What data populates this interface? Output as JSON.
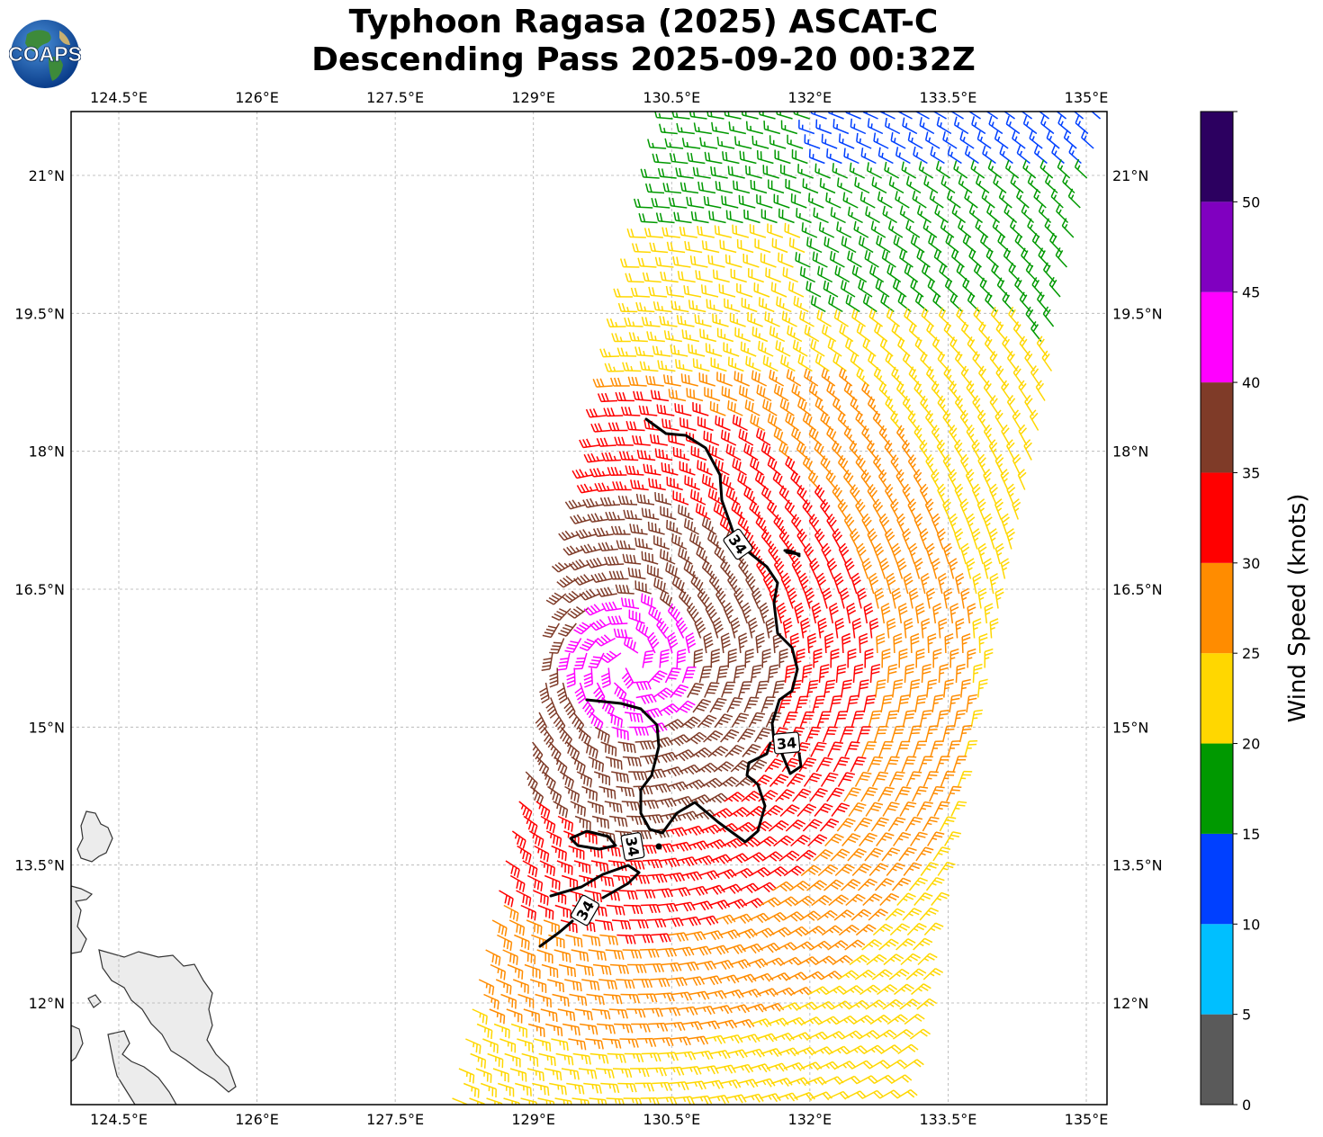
{
  "title": {
    "line1": "Typhoon Ragasa (2025) ASCAT-C",
    "line2": "Descending Pass 2025-09-20 00:32Z"
  },
  "logo": {
    "text": "COAPS"
  },
  "axes": {
    "lon_ticks": [
      "124.5°E",
      "126°E",
      "127.5°E",
      "129°E",
      "130.5°E",
      "132°E",
      "133.5°E",
      "135°E"
    ],
    "lat_ticks": [
      "21°N",
      "19.5°N",
      "18°N",
      "16.5°N",
      "15°N",
      "13.5°N",
      "12°N"
    ],
    "lon_values": [
      124.5,
      126,
      127.5,
      129,
      130.5,
      132,
      133.5,
      135
    ],
    "lat_values": [
      21,
      19.5,
      18,
      16.5,
      15,
      13.5,
      12
    ],
    "lon_range": [
      123.95,
      135.2
    ],
    "lat_range": [
      10.9,
      21.7
    ],
    "gridlines": true
  },
  "contour": {
    "label": "34",
    "unit_level_kt": 34
  },
  "colorbar": {
    "label": "Wind Speed (knots)",
    "ticks": [
      "0",
      "5",
      "10",
      "15",
      "20",
      "25",
      "30",
      "35",
      "40",
      "45",
      "50"
    ],
    "bins": [
      {
        "min": 0,
        "max": 5,
        "color": "#5a5a5a"
      },
      {
        "min": 5,
        "max": 10,
        "color": "#00bfff"
      },
      {
        "min": 10,
        "max": 15,
        "color": "#0040ff"
      },
      {
        "min": 15,
        "max": 20,
        "color": "#009900"
      },
      {
        "min": 20,
        "max": 25,
        "color": "#ffd700"
      },
      {
        "min": 25,
        "max": 30,
        "color": "#ff8c00"
      },
      {
        "min": 30,
        "max": 35,
        "color": "#ff0000"
      },
      {
        "min": 35,
        "max": 40,
        "color": "#7f3b28"
      },
      {
        "min": 40,
        "max": 45,
        "color": "#ff00ff"
      },
      {
        "min": 45,
        "max": 50,
        "color": "#8000c0"
      },
      {
        "min": 50,
        "max": 55,
        "color": "#2c0060"
      }
    ]
  },
  "colors": {
    "coast": "#333333",
    "land": "#ececec",
    "grid": "#b0b0b0",
    "contour": "#000000"
  }
}
